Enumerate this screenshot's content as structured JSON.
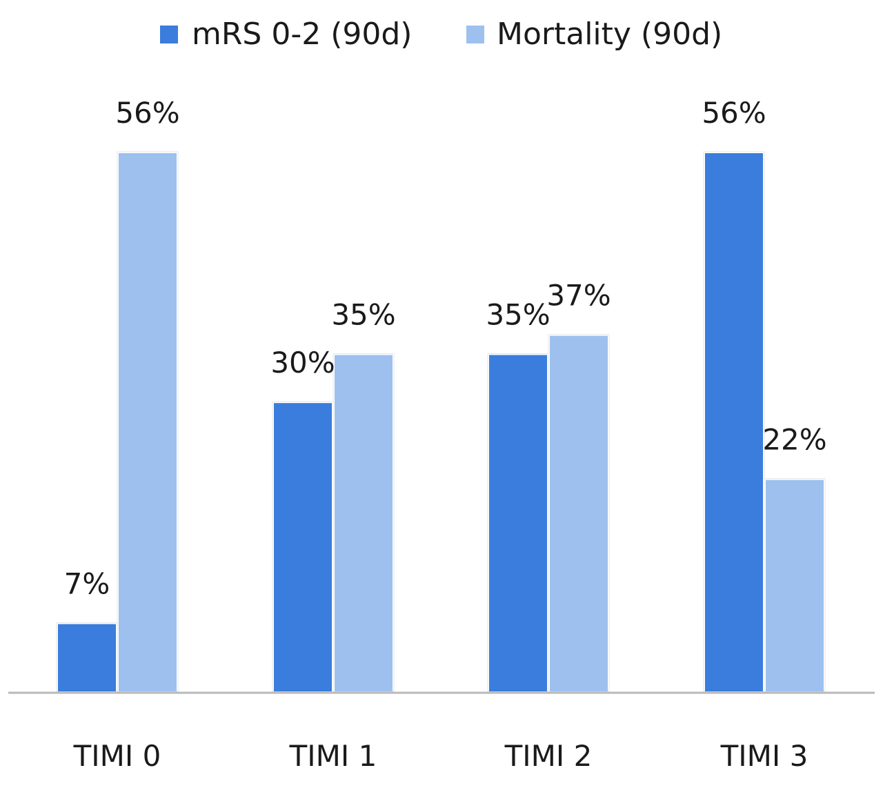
{
  "chart_data": {
    "type": "bar",
    "title": "",
    "xlabel": "",
    "ylabel": "",
    "categories": [
      "TIMI 0",
      "TIMI 1",
      "TIMI 2",
      "TIMI 3"
    ],
    "series": [
      {
        "name": "mRS 0-2 (90d)",
        "values": [
          7,
          30,
          35,
          56
        ],
        "labels": [
          "7%",
          "30%",
          "35%",
          "56%"
        ],
        "color": "#3a7ddc"
      },
      {
        "name": "Mortality (90d)",
        "values": [
          56,
          35,
          37,
          22
        ],
        "labels": [
          "56%",
          "35%",
          "37%",
          "22%"
        ],
        "color": "#9dc0ef"
      }
    ],
    "ylim": [
      0,
      56
    ],
    "grid": false,
    "legend_position": "top-center",
    "y_axis_visible": false,
    "baseline_color": "#b9b9b9"
  }
}
